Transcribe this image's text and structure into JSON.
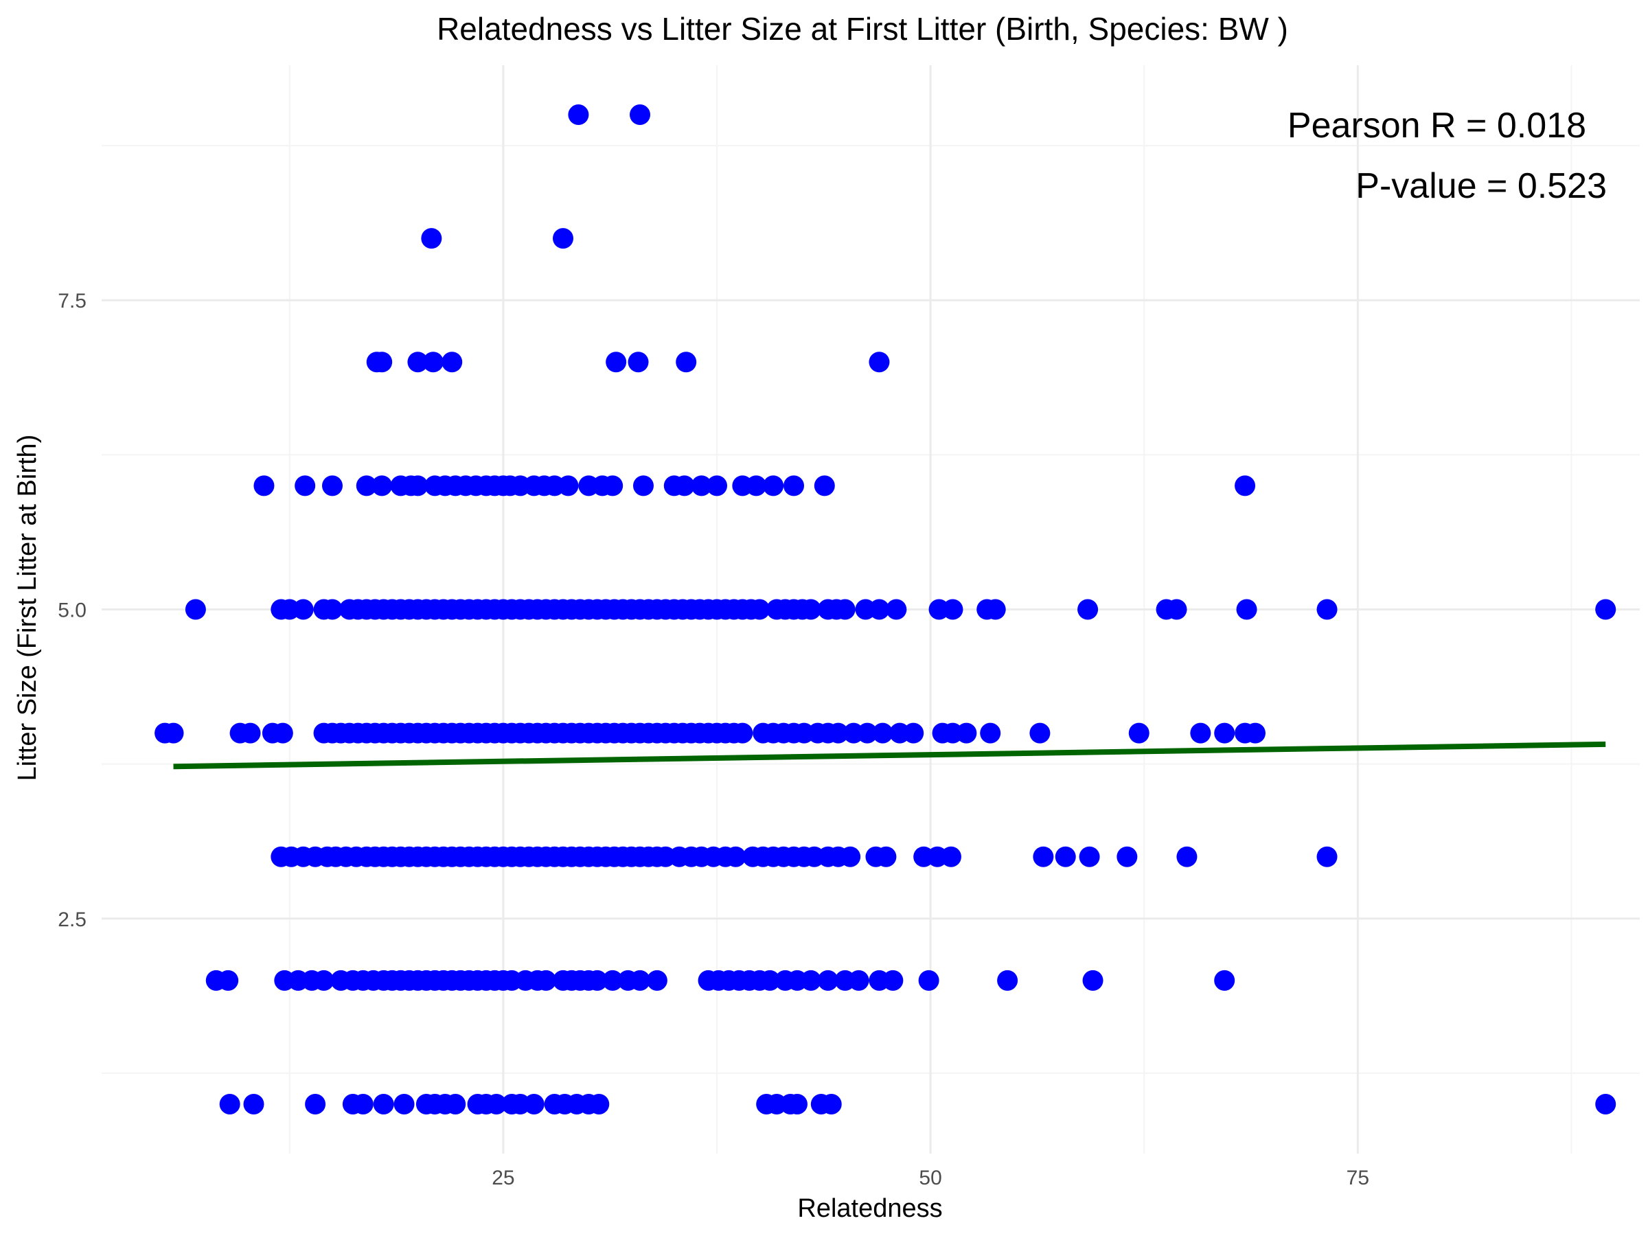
{
  "chart_data": {
    "type": "scatter",
    "title": "Relatedness vs Litter Size at First Litter (Birth, Species: BW )",
    "xlabel": "Relatedness",
    "ylabel": "Litter Size (First Litter at Birth)",
    "xlim": [
      1.5,
      91.5
    ],
    "ylim": [
      0.6,
      9.4
    ],
    "x_ticks": [
      25,
      50,
      75
    ],
    "x_tick_labels": [
      "25",
      "50",
      "75"
    ],
    "x_minor_ticks": [
      12.5,
      37.5,
      62.5,
      87.5
    ],
    "y_ticks": [
      2.5,
      5.0,
      7.5
    ],
    "y_tick_labels": [
      "2.5",
      "5.0",
      "7.5"
    ],
    "y_minor_ticks": [
      1.25,
      3.75,
      6.25,
      8.75
    ],
    "grid": true,
    "point_color": "#0000ff",
    "line_color": "#006400",
    "annotations": [
      "Pearson R = 0.018",
      "P-value = 0.523"
    ],
    "trend_line": {
      "x": [
        5.7,
        89.5
      ],
      "y": [
        3.73,
        3.91
      ]
    },
    "points": [
      {
        "y": 9,
        "x": [
          29.4,
          33.0
        ]
      },
      {
        "y": 8,
        "x": [
          20.8,
          28.5
        ]
      },
      {
        "y": 7,
        "x": [
          17.6,
          17.9,
          20.0,
          20.9,
          22.0,
          31.6,
          32.9,
          35.7,
          47.0
        ]
      },
      {
        "y": 6,
        "x": [
          11.0,
          13.4,
          15.0,
          17.0,
          17.9,
          19.0,
          19.6,
          20.0,
          21.0,
          21.6,
          22.2,
          22.8,
          23.4,
          24.0,
          24.5,
          25.0,
          25.4,
          26.0,
          26.8,
          27.4,
          28.0,
          28.8,
          30.0,
          30.8,
          31.4,
          33.2,
          35.0,
          35.6,
          36.6,
          37.5,
          39.0,
          39.8,
          40.8,
          42.0,
          43.8,
          68.4
        ]
      },
      {
        "y": 5,
        "x": [
          7.0,
          12.0,
          12.5,
          13.3,
          14.5,
          15.0,
          16.0,
          16.5,
          17.0,
          17.5,
          18.0,
          18.5,
          19.0,
          19.5,
          20.0,
          20.5,
          21.0,
          21.5,
          22.0,
          22.5,
          23.0,
          23.5,
          24.0,
          24.5,
          25.0,
          25.5,
          26.0,
          26.5,
          27.0,
          27.5,
          28.0,
          28.5,
          29.0,
          29.5,
          30.0,
          30.5,
          31.0,
          31.5,
          32.0,
          32.5,
          33.0,
          33.5,
          34.0,
          34.5,
          35.0,
          35.5,
          36.0,
          36.5,
          37.0,
          37.5,
          38.0,
          38.5,
          39.0,
          39.5,
          40.0,
          41.0,
          41.5,
          42.0,
          42.5,
          43.0,
          44.0,
          44.5,
          45.0,
          46.2,
          47.0,
          48.0,
          50.5,
          51.3,
          53.3,
          53.8,
          59.2,
          63.8,
          64.4,
          68.5,
          73.2,
          89.5
        ]
      },
      {
        "y": 4,
        "x": [
          5.2,
          5.7,
          9.6,
          10.2,
          11.5,
          12.1,
          14.5,
          15.0,
          15.5,
          16.0,
          16.5,
          17.0,
          17.5,
          18.0,
          18.5,
          19.0,
          19.5,
          20.0,
          20.5,
          21.0,
          21.5,
          22.0,
          22.5,
          23.0,
          23.5,
          24.0,
          24.5,
          25.0,
          25.5,
          26.0,
          26.5,
          27.0,
          27.5,
          28.0,
          28.5,
          29.0,
          29.5,
          30.0,
          30.5,
          31.0,
          31.5,
          32.0,
          32.5,
          33.0,
          33.5,
          34.0,
          34.5,
          35.0,
          35.5,
          36.0,
          36.5,
          37.0,
          37.5,
          38.0,
          38.5,
          39.0,
          40.2,
          40.8,
          41.4,
          42.0,
          42.6,
          43.4,
          44.0,
          44.6,
          45.5,
          46.3,
          47.2,
          48.2,
          49.0,
          50.7,
          51.3,
          52.1,
          53.5,
          56.4,
          62.2,
          65.8,
          67.2,
          68.4,
          69.0
        ]
      },
      {
        "y": 3,
        "x": [
          12.0,
          12.6,
          13.3,
          14.0,
          14.7,
          15.2,
          15.8,
          16.4,
          17.0,
          17.5,
          18.0,
          18.5,
          19.0,
          19.5,
          20.0,
          20.5,
          21.0,
          21.5,
          22.0,
          22.5,
          23.0,
          23.5,
          24.0,
          24.5,
          25.0,
          25.5,
          26.0,
          26.5,
          27.0,
          27.5,
          28.0,
          28.5,
          29.0,
          29.5,
          30.0,
          30.5,
          31.0,
          31.5,
          32.0,
          32.5,
          33.0,
          33.5,
          34.0,
          34.5,
          35.3,
          36.0,
          36.6,
          37.3,
          38.0,
          38.6,
          39.6,
          40.2,
          40.8,
          41.4,
          42.0,
          42.6,
          43.2,
          44.0,
          44.6,
          45.3,
          46.8,
          47.4,
          49.6,
          50.4,
          51.2,
          56.6,
          57.9,
          59.3,
          61.5,
          65.0,
          73.2
        ]
      },
      {
        "y": 2,
        "x": [
          8.2,
          8.9,
          12.2,
          13.0,
          13.8,
          14.5,
          15.5,
          16.2,
          16.8,
          17.4,
          18.0,
          18.5,
          19.0,
          19.5,
          20.0,
          20.5,
          21.0,
          21.5,
          22.0,
          22.5,
          23.0,
          23.5,
          24.0,
          24.5,
          25.0,
          25.5,
          26.3,
          27.0,
          27.5,
          28.5,
          29.0,
          29.5,
          30.0,
          30.5,
          31.4,
          32.3,
          33.0,
          34.0,
          37.0,
          37.6,
          38.2,
          38.8,
          39.4,
          40.0,
          40.6,
          41.5,
          42.2,
          43.0,
          44.0,
          45.0,
          45.8,
          47.0,
          47.8,
          49.9,
          54.5,
          59.5,
          67.2
        ]
      },
      {
        "y": 1,
        "x": [
          9.0,
          10.4,
          14.0,
          16.2,
          16.8,
          18.0,
          19.2,
          20.5,
          21.0,
          21.6,
          22.2,
          23.5,
          24.0,
          24.6,
          25.5,
          26.0,
          26.8,
          28.0,
          28.6,
          29.3,
          30.0,
          30.6,
          40.4,
          41.0,
          41.8,
          42.2,
          43.6,
          44.2,
          89.5
        ]
      }
    ]
  }
}
